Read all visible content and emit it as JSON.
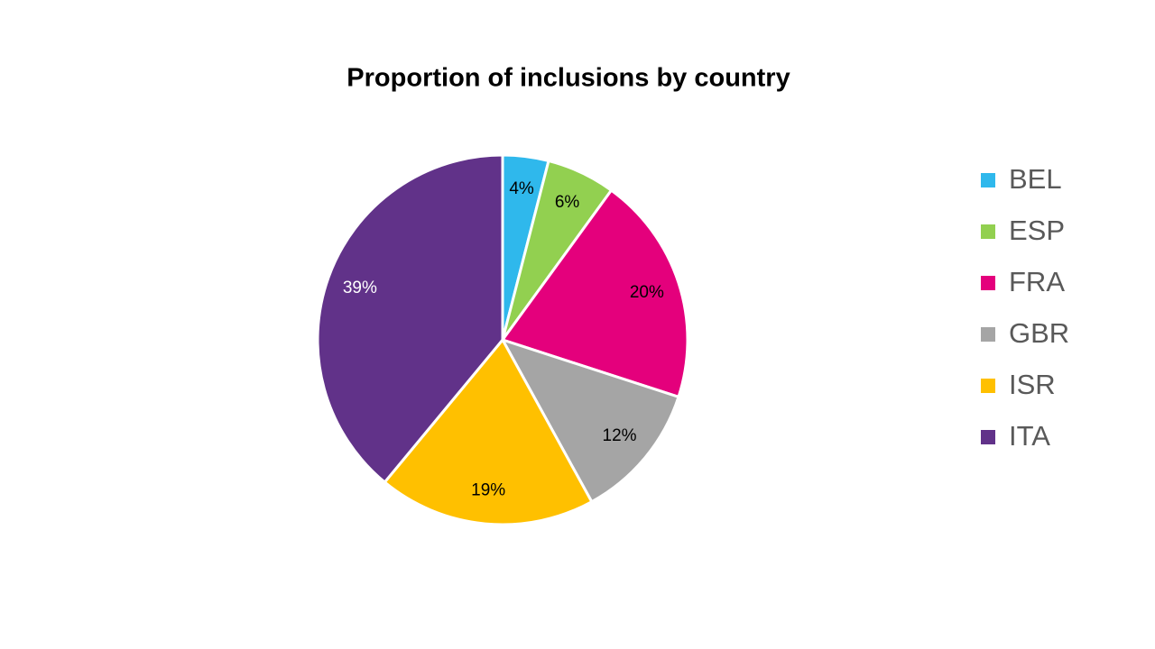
{
  "chart_data": {
    "type": "pie",
    "title": "Proportion of inclusions by country",
    "categories": [
      "BEL",
      "ESP",
      "FRA",
      "GBR",
      "ISR",
      "ITA"
    ],
    "values": [
      4,
      6,
      20,
      12,
      19,
      39
    ],
    "value_labels": [
      "4%",
      "6%",
      "20%",
      "12%",
      "19%",
      "39%"
    ],
    "colors": [
      "#2fb8ec",
      "#92d050",
      "#e4007c",
      "#a5a5a5",
      "#ffc000",
      "#613289"
    ],
    "label_colors": [
      "#000000",
      "#000000",
      "#000000",
      "#000000",
      "#000000",
      "#ffffff"
    ],
    "legend": "right"
  }
}
